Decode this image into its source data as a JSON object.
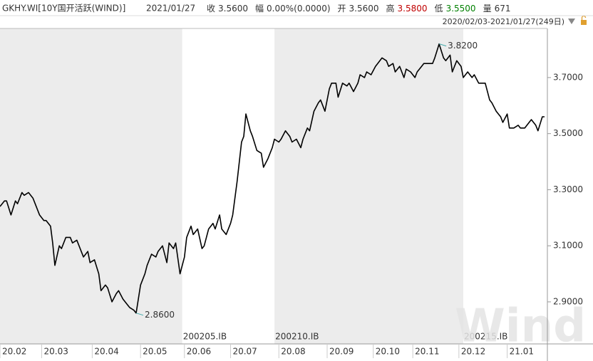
{
  "chart_data": {
    "type": "line",
    "header": {
      "code": "GKHY.WI[10Y国开活跃(WIND)]",
      "date": "2021/01/27",
      "items": [
        {
          "label": "收",
          "value": "3.5600"
        },
        {
          "label": "幅",
          "value": "0.00%(0.0000)"
        },
        {
          "label": "开",
          "value": "3.5600"
        },
        {
          "label": "高",
          "value": "3.5800",
          "color": "#c00000"
        },
        {
          "label": "低",
          "value": "3.5500",
          "color": "#008000"
        },
        {
          "label": "量",
          "value": "671"
        }
      ],
      "range": "2020/02/03-2021/01/27(249日)"
    },
    "watermark": "Wind",
    "color": "#000000",
    "x": [
      0,
      2,
      3,
      5,
      7,
      8,
      10,
      11,
      13,
      15,
      16,
      18,
      20,
      21,
      23,
      24,
      25,
      27,
      28,
      30,
      32,
      33,
      35,
      36,
      38,
      40,
      41,
      43,
      45,
      46,
      48,
      49,
      51,
      53,
      54,
      56,
      58,
      59,
      61,
      62,
      64,
      66,
      67,
      69,
      71,
      72,
      74,
      76,
      77,
      79,
      80,
      82,
      84,
      85,
      87,
      88,
      90,
      92,
      93,
      95,
      97,
      98,
      100,
      101,
      103,
      105,
      106,
      108,
      110,
      111,
      112,
      114,
      115,
      117,
      119,
      120,
      122,
      124,
      125,
      127,
      128,
      130,
      132,
      133,
      135,
      137,
      138,
      140,
      141,
      143,
      145,
      146,
      148,
      150,
      151,
      153,
      154,
      156,
      158,
      159,
      161,
      163,
      164,
      166,
      167,
      169,
      171,
      172,
      174,
      176,
      177,
      179,
      180,
      182,
      184,
      185,
      187,
      189,
      190,
      192,
      193,
      195,
      197,
      198,
      200,
      202,
      203,
      205,
      206,
      208,
      210,
      211,
      213,
      215,
      216,
      218,
      219,
      221,
      223,
      224,
      226,
      228,
      229,
      231,
      232,
      234,
      236,
      237,
      239,
      241,
      242,
      244,
      245,
      247,
      248
    ],
    "values": [
      3.24,
      3.26,
      3.26,
      3.21,
      3.26,
      3.25,
      3.29,
      3.28,
      3.29,
      3.27,
      3.25,
      3.21,
      3.19,
      3.19,
      3.17,
      3.11,
      3.03,
      3.1,
      3.09,
      3.13,
      3.13,
      3.11,
      3.12,
      3.1,
      3.06,
      3.08,
      3.04,
      3.05,
      3.0,
      2.94,
      2.96,
      2.95,
      2.9,
      2.93,
      2.94,
      2.91,
      2.89,
      2.88,
      2.87,
      2.86,
      2.96,
      3.0,
      3.03,
      3.07,
      3.06,
      3.08,
      3.1,
      3.04,
      3.11,
      3.09,
      3.11,
      3.0,
      3.06,
      3.13,
      3.17,
      3.14,
      3.16,
      3.09,
      3.1,
      3.16,
      3.18,
      3.16,
      3.21,
      3.16,
      3.14,
      3.18,
      3.21,
      3.33,
      3.47,
      3.49,
      3.57,
      3.51,
      3.49,
      3.44,
      3.43,
      3.38,
      3.41,
      3.45,
      3.48,
      3.47,
      3.48,
      3.51,
      3.49,
      3.47,
      3.48,
      3.45,
      3.48,
      3.52,
      3.51,
      3.58,
      3.61,
      3.62,
      3.58,
      3.66,
      3.68,
      3.68,
      3.63,
      3.68,
      3.67,
      3.68,
      3.65,
      3.68,
      3.71,
      3.7,
      3.72,
      3.71,
      3.74,
      3.75,
      3.77,
      3.76,
      3.74,
      3.75,
      3.72,
      3.74,
      3.7,
      3.73,
      3.72,
      3.7,
      3.72,
      3.74,
      3.75,
      3.75,
      3.75,
      3.77,
      3.82,
      3.77,
      3.76,
      3.78,
      3.72,
      3.76,
      3.74,
      3.7,
      3.72,
      3.7,
      3.71,
      3.68,
      3.68,
      3.68,
      3.62,
      3.61,
      3.58,
      3.56,
      3.54,
      3.57,
      3.52,
      3.52,
      3.53,
      3.52,
      3.52,
      3.54,
      3.55,
      3.53,
      3.51,
      3.56,
      3.56
    ],
    "xlim": [
      0,
      248
    ],
    "ylim": [
      2.75,
      3.875
    ],
    "yticks": [
      {
        "value": 2.9,
        "label": "2.9000"
      },
      {
        "value": 3.1,
        "label": "3.1000"
      },
      {
        "value": 3.3,
        "label": "3.3000"
      },
      {
        "value": 3.5,
        "label": "3.5000"
      },
      {
        "value": 3.7,
        "label": "3.7000"
      }
    ],
    "xticks": [
      {
        "value": 0,
        "label": "20.02"
      },
      {
        "value": 19,
        "label": "20.03"
      },
      {
        "value": 42,
        "label": "20.04"
      },
      {
        "value": 64,
        "label": "20.05"
      },
      {
        "value": 84,
        "label": "20.06"
      },
      {
        "value": 105,
        "label": "20.07"
      },
      {
        "value": 127,
        "label": "20.08"
      },
      {
        "value": 149,
        "label": "20.09"
      },
      {
        "value": 170,
        "label": "20.10"
      },
      {
        "value": 188,
        "label": "20.11"
      },
      {
        "value": 209,
        "label": "20.12"
      },
      {
        "value": 231,
        "label": "21.01"
      }
    ],
    "contracts": [
      {
        "start": 0,
        "end": 83,
        "shade": "#ececec"
      },
      {
        "label": "200205.IB",
        "start": 83,
        "end": 125,
        "shade": "#ffffff"
      },
      {
        "label": "200210.IB",
        "start": 125,
        "end": 211,
        "shade": "#ececec"
      },
      {
        "label": "200215.IB",
        "start": 211,
        "end": 248,
        "shade": "#ffffff"
      }
    ],
    "annotations": [
      {
        "text": "3.8200",
        "x": 200,
        "y": 3.82,
        "color": "#c00000"
      },
      {
        "text": "2.8600",
        "x": 62,
        "y": 2.86,
        "color": "#008000"
      }
    ]
  }
}
